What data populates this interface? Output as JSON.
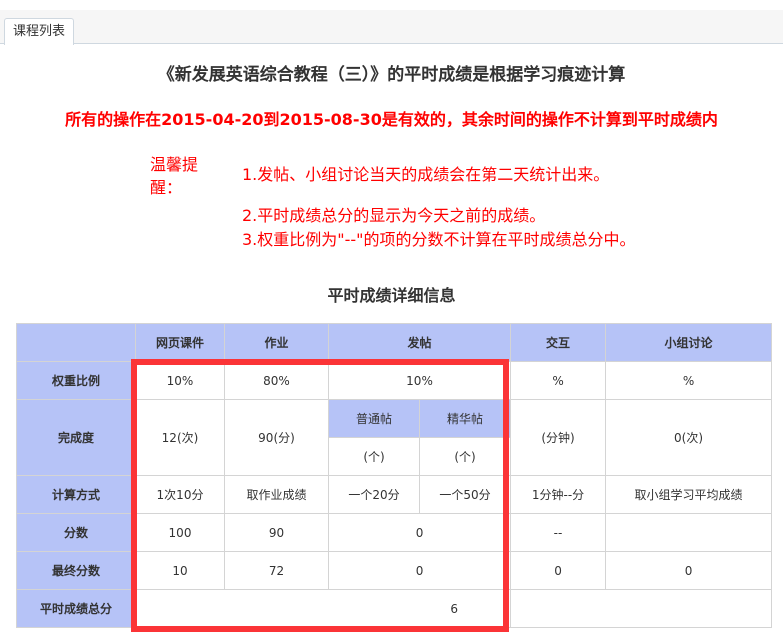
{
  "tab": {
    "label": "课程列表"
  },
  "title": "《新发展英语综合教程（三）》的平时成绩是根据学习痕迹计算",
  "warning": "所有的操作在2015-04-20到2015-08-30是有效的，其余时间的操作不计算到平时成绩内",
  "tips": {
    "label": "温馨提醒：",
    "items": [
      "1.发帖、小组讨论当天的成绩会在第二天统计出来。",
      "2.平时成绩总分的显示为今天之前的成绩。",
      "3.权重比例为\"--\"的项的分数不计算在平时成绩总分中。"
    ]
  },
  "subtitle": "平时成绩详细信息",
  "table": {
    "headers": [
      "网页课件",
      "作业",
      "发帖",
      "交互",
      "小组讨论"
    ],
    "post_subheaders": [
      "普通帖",
      "精华帖"
    ],
    "rows": {
      "weight": {
        "label": "权重比例",
        "values": [
          "10%",
          "80%",
          "10%",
          "%",
          "%"
        ]
      },
      "completion": {
        "label": "完成度",
        "courseware": "12(次)",
        "homework": "90(分)",
        "normal_post": "(个)",
        "elite_post": "(个)",
        "interaction": "(分钟)",
        "group": "0(次)"
      },
      "method": {
        "label": "计算方式",
        "values": [
          "1次10分",
          "取作业成绩",
          "一个20分",
          "一个50分",
          "1分钟--分",
          "取小组学习平均成绩"
        ]
      },
      "score": {
        "label": "分数",
        "values": [
          "100",
          "90",
          "0",
          "--",
          ""
        ]
      },
      "final": {
        "label": "最终分数",
        "values": [
          "10",
          "72",
          "0",
          "0",
          "0"
        ]
      },
      "total": {
        "label": "平时成绩总分",
        "value": "6"
      }
    }
  },
  "colors": {
    "header_bg": "#b6c3f7",
    "warning": "#ff0000",
    "highlight_box": "#fb3437"
  }
}
